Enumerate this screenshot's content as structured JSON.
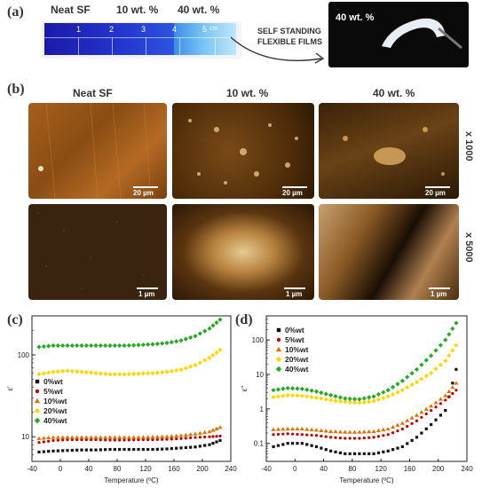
{
  "panel_a": {
    "label": "(a)",
    "headers": [
      "Neat SF",
      "10 wt. %",
      "40 wt. %"
    ],
    "segment_numbers": [
      "1",
      "2",
      "3",
      "4",
      "5"
    ],
    "segment_unit": "cm",
    "arrow_text_line1": "SELF STANDING",
    "arrow_text_line2": "FLEXIBLE FILMS",
    "photo_label": "40 wt. %"
  },
  "panel_b": {
    "label": "(b)",
    "headers": [
      "Neat SF",
      "10 wt. %",
      "40 wt. %"
    ],
    "row_labels": [
      "x 1000",
      "x 5000"
    ],
    "scale_bars_row1": [
      "20 µm",
      "20 µm",
      "20 µm"
    ],
    "scale_bars_row2": [
      "1 µm",
      "1 µm",
      "1 µm"
    ]
  },
  "panel_c": {
    "label": "(c)",
    "xlabel": "Temperature (ºC)",
    "ylabel": "ε'"
  },
  "panel_d": {
    "label": "(d)",
    "xlabel": "Temperature (ºC)",
    "ylabel": "ε''"
  },
  "colors": {
    "s0": "#111111",
    "s5": "#c00000",
    "s10": "#e07000",
    "s20": "#ffd700",
    "s40": "#22aa22"
  },
  "chart_data": [
    {
      "type": "scatter",
      "panel": "c",
      "xlabel": "Temperature (ºC)",
      "ylabel": "ε'",
      "yscale": "log",
      "xlim": [
        -40,
        240
      ],
      "ylim": [
        5,
        300
      ],
      "x_ticks": [
        "-40",
        "0",
        "40",
        "80",
        "120",
        "160",
        "200",
        "240"
      ],
      "y_ticks": [
        "10",
        "100"
      ],
      "legend_position": "center-left",
      "series": [
        {
          "name": "0%wt",
          "marker": "square",
          "x": [
            -30,
            -10,
            10,
            30,
            50,
            70,
            90,
            110,
            130,
            150,
            170,
            190,
            210,
            225
          ],
          "y": [
            6.5,
            6.7,
            6.8,
            6.9,
            6.9,
            7.0,
            7.0,
            7.0,
            7.0,
            7.1,
            7.3,
            7.5,
            8.0,
            9.0
          ]
        },
        {
          "name": "5%wt",
          "marker": "circle",
          "x": [
            -30,
            -10,
            10,
            30,
            50,
            70,
            90,
            110,
            130,
            150,
            170,
            190,
            210,
            225
          ],
          "y": [
            8.5,
            9.0,
            9.2,
            9.2,
            9.2,
            9.1,
            9.1,
            9.2,
            9.2,
            9.3,
            9.5,
            9.8,
            10.0,
            10.2
          ]
        },
        {
          "name": "10%wt",
          "marker": "triangle",
          "x": [
            -30,
            -10,
            10,
            30,
            50,
            70,
            90,
            110,
            130,
            150,
            170,
            190,
            210,
            225
          ],
          "y": [
            9.5,
            9.8,
            9.8,
            9.8,
            9.8,
            9.8,
            9.8,
            9.8,
            9.9,
            10.0,
            10.3,
            10.8,
            11.5,
            13.0
          ]
        },
        {
          "name": "20%wt",
          "marker": "diamond",
          "x": [
            -30,
            -10,
            10,
            30,
            50,
            70,
            90,
            110,
            130,
            150,
            170,
            190,
            210,
            225
          ],
          "y": [
            58,
            62,
            64,
            62,
            60,
            58,
            58,
            59,
            60,
            62,
            66,
            75,
            92,
            115
          ]
        },
        {
          "name": "40%wt",
          "marker": "diamond",
          "x": [
            -30,
            -10,
            10,
            30,
            50,
            70,
            90,
            110,
            130,
            150,
            170,
            190,
            210,
            225
          ],
          "y": [
            125,
            130,
            130,
            130,
            130,
            130,
            130,
            132,
            135,
            140,
            150,
            170,
            210,
            270
          ]
        }
      ]
    },
    {
      "type": "scatter",
      "panel": "d",
      "xlabel": "Temperature (ºC)",
      "ylabel": "ε''",
      "yscale": "log",
      "xlim": [
        -40,
        240
      ],
      "ylim": [
        0.03,
        500
      ],
      "x_ticks": [
        "-40",
        "0",
        "40",
        "80",
        "120",
        "160",
        "200",
        "240"
      ],
      "y_ticks": [
        "0.1",
        "1",
        "10",
        "100"
      ],
      "legend_position": "top-left",
      "series": [
        {
          "name": "0%wt",
          "marker": "square",
          "x": [
            -30,
            -10,
            10,
            30,
            50,
            70,
            90,
            110,
            130,
            150,
            170,
            190,
            210,
            225
          ],
          "y": [
            0.08,
            0.1,
            0.1,
            0.08,
            0.06,
            0.05,
            0.05,
            0.05,
            0.06,
            0.08,
            0.15,
            0.35,
            0.9,
            14
          ]
        },
        {
          "name": "5%wt",
          "marker": "circle",
          "x": [
            -30,
            -10,
            10,
            30,
            50,
            70,
            90,
            110,
            130,
            150,
            170,
            190,
            210,
            225
          ],
          "y": [
            0.18,
            0.19,
            0.18,
            0.17,
            0.15,
            0.14,
            0.14,
            0.15,
            0.18,
            0.26,
            0.45,
            0.9,
            1.8,
            3.5
          ]
        },
        {
          "name": "10%wt",
          "marker": "triangle",
          "x": [
            -30,
            -10,
            10,
            30,
            50,
            70,
            90,
            110,
            130,
            150,
            170,
            190,
            210,
            225
          ],
          "y": [
            0.25,
            0.26,
            0.26,
            0.24,
            0.22,
            0.21,
            0.21,
            0.22,
            0.26,
            0.38,
            0.65,
            1.2,
            2.4,
            5.5
          ]
        },
        {
          "name": "20%wt",
          "marker": "diamond",
          "x": [
            -30,
            -10,
            10,
            30,
            50,
            70,
            90,
            110,
            130,
            150,
            170,
            190,
            210,
            225
          ],
          "y": [
            2.2,
            2.5,
            2.4,
            2.1,
            1.8,
            1.6,
            1.5,
            1.7,
            2.3,
            3.5,
            6,
            11,
            25,
            70
          ]
        },
        {
          "name": "40%wt",
          "marker": "diamond",
          "x": [
            -30,
            -10,
            10,
            30,
            50,
            70,
            90,
            110,
            130,
            150,
            170,
            190,
            210,
            225
          ],
          "y": [
            3.5,
            4.0,
            3.8,
            3.2,
            2.5,
            2.0,
            1.9,
            2.3,
            3.5,
            6.5,
            14,
            35,
            100,
            310
          ]
        }
      ]
    }
  ]
}
